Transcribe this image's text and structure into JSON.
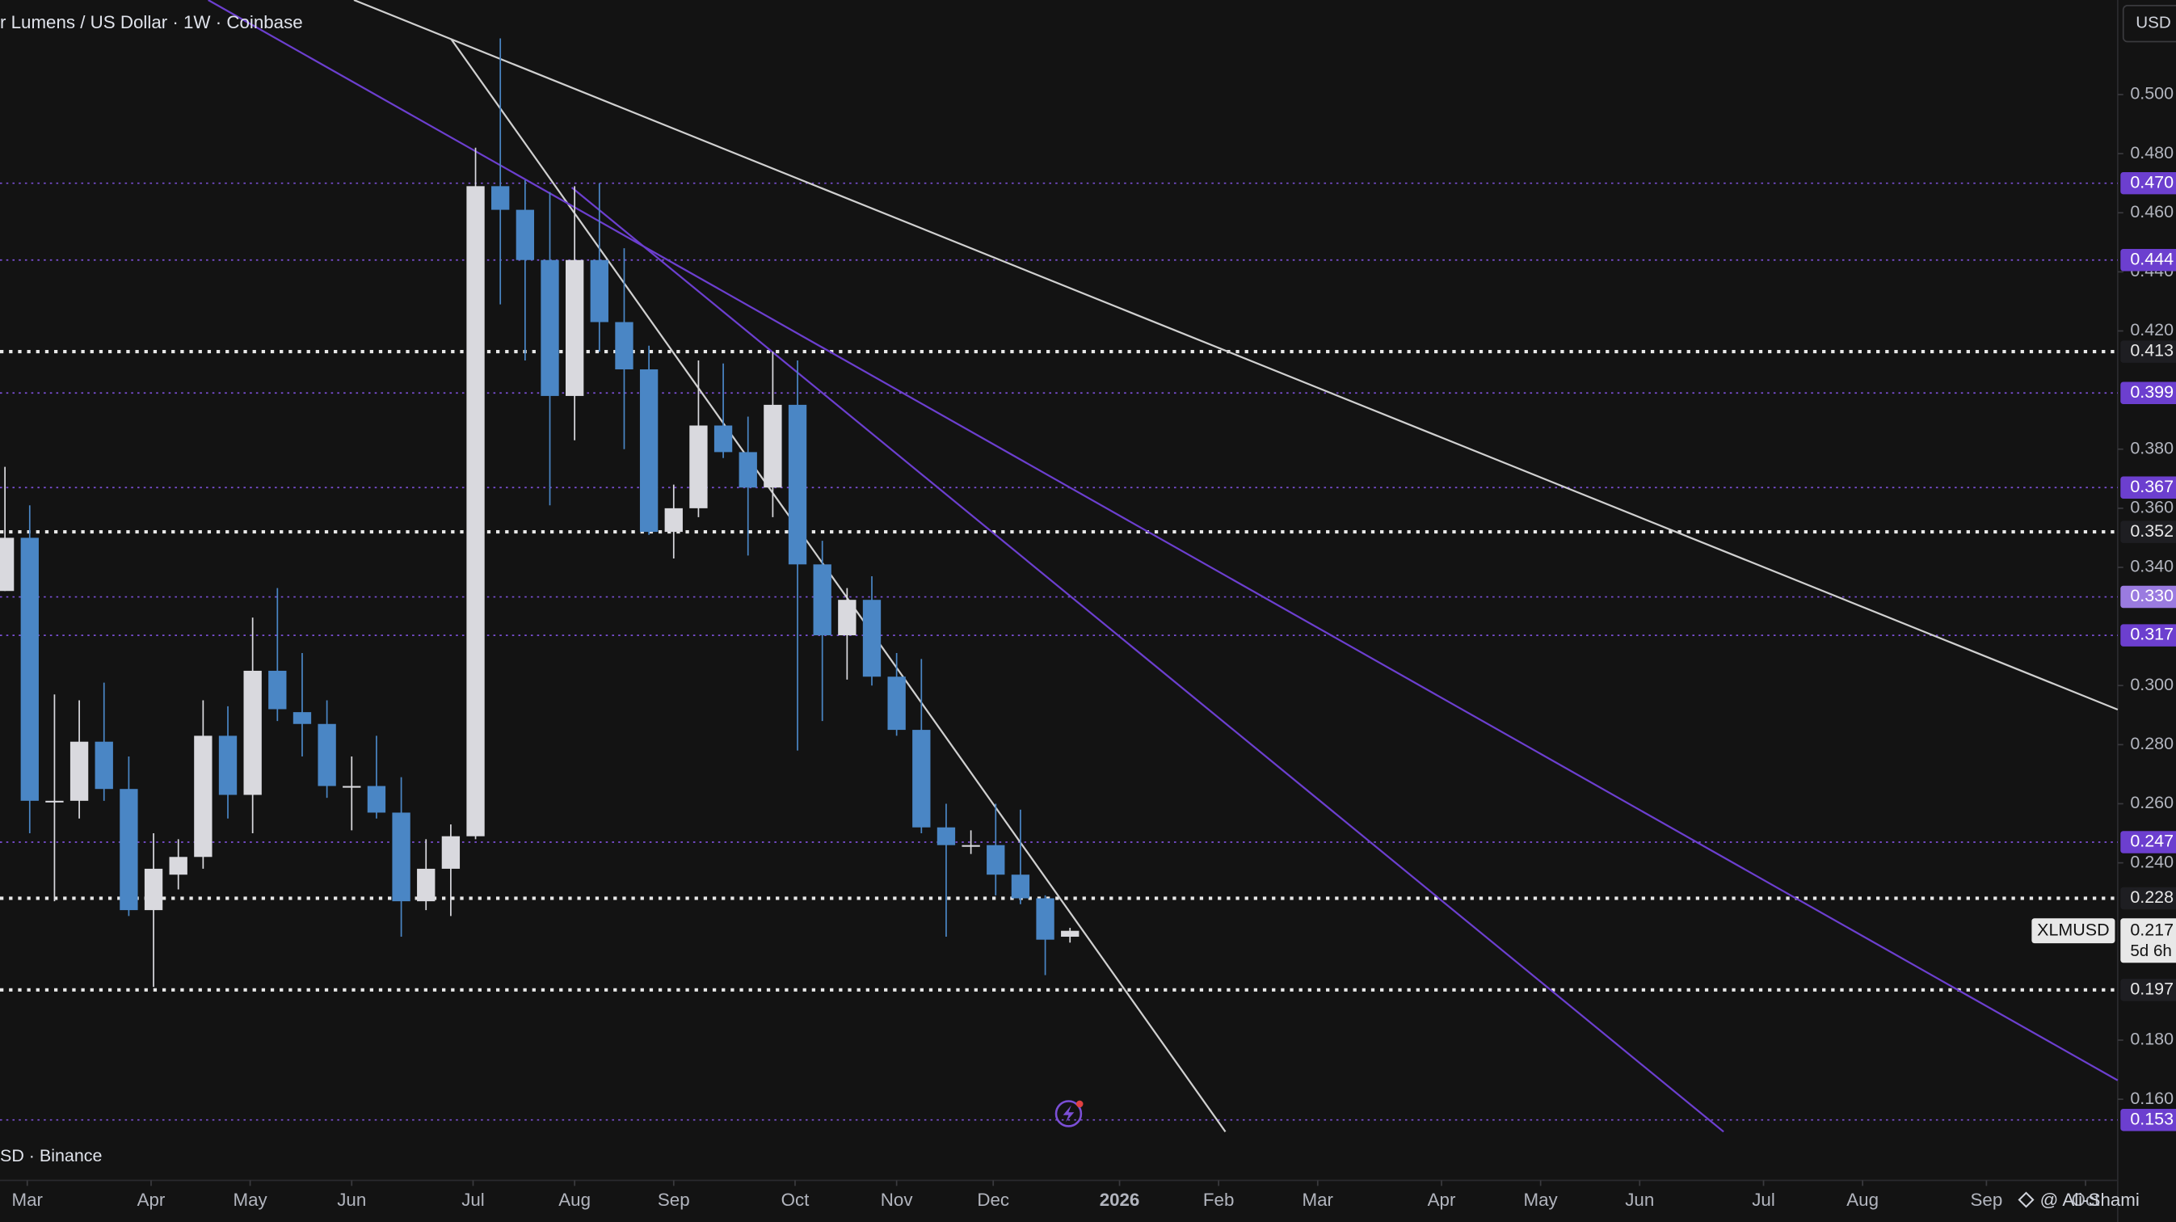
{
  "chart_data": {
    "type": "candlestick",
    "title": "r Lumens / US Dollar · 1W · Coinbase",
    "currency": "USD",
    "overlay": "SD · Binance",
    "symbol": "XLMUSD",
    "countdown": "5d 6h",
    "watermark": "@ Ali-Shami",
    "up_color": "#d9d9de",
    "down_color": "#4a86c5",
    "x": [
      0,
      1,
      2,
      3,
      4,
      5,
      6,
      7,
      8,
      9,
      10,
      11,
      12,
      13,
      14,
      15,
      16,
      17,
      18,
      19,
      20,
      21,
      22,
      23,
      24,
      25,
      26,
      27,
      28,
      29,
      30,
      31,
      32,
      33,
      34,
      35,
      36,
      37,
      38,
      39,
      40,
      41,
      42,
      43
    ],
    "open": [
      0.332,
      0.35,
      0.261,
      0.261,
      0.281,
      0.265,
      0.224,
      0.236,
      0.242,
      0.283,
      0.263,
      0.305,
      0.291,
      0.287,
      0.266,
      0.266,
      0.257,
      0.227,
      0.238,
      0.249,
      0.469,
      0.461,
      0.444,
      0.398,
      0.444,
      0.423,
      0.407,
      0.352,
      0.36,
      0.388,
      0.379,
      0.367,
      0.395,
      0.341,
      0.317,
      0.329,
      0.303,
      0.285,
      0.252,
      0.246,
      0.246,
      0.236,
      0.228,
      0.215
    ],
    "high": [
      0.374,
      0.361,
      0.297,
      0.295,
      0.301,
      0.276,
      0.25,
      0.248,
      0.295,
      0.293,
      0.323,
      0.333,
      0.311,
      0.295,
      0.276,
      0.283,
      0.269,
      0.248,
      0.253,
      0.482,
      0.519,
      0.471,
      0.467,
      0.469,
      0.47,
      0.448,
      0.415,
      0.368,
      0.41,
      0.409,
      0.391,
      0.413,
      0.41,
      0.349,
      0.333,
      0.337,
      0.311,
      0.309,
      0.26,
      0.251,
      0.26,
      0.258,
      0.229,
      0.218
    ],
    "low": [
      0.332,
      0.25,
      0.227,
      0.255,
      0.261,
      0.222,
      0.198,
      0.231,
      0.238,
      0.255,
      0.25,
      0.288,
      0.276,
      0.262,
      0.251,
      0.255,
      0.215,
      0.224,
      0.222,
      0.248,
      0.429,
      0.41,
      0.361,
      0.383,
      0.413,
      0.38,
      0.351,
      0.343,
      0.357,
      0.377,
      0.344,
      0.357,
      0.278,
      0.288,
      0.302,
      0.3,
      0.283,
      0.25,
      0.215,
      0.243,
      0.229,
      0.226,
      0.202,
      0.213
    ],
    "close": [
      0.35,
      0.261,
      0.261,
      0.281,
      0.265,
      0.224,
      0.238,
      0.242,
      0.283,
      0.263,
      0.305,
      0.292,
      0.287,
      0.266,
      0.266,
      0.257,
      0.227,
      0.238,
      0.249,
      0.469,
      0.461,
      0.444,
      0.398,
      0.444,
      0.423,
      0.407,
      0.352,
      0.36,
      0.388,
      0.379,
      0.367,
      0.395,
      0.341,
      0.317,
      0.329,
      0.303,
      0.285,
      0.252,
      0.246,
      0.246,
      0.236,
      0.228,
      0.214,
      0.217
    ],
    "xlim": [
      -0.2,
      85.3
    ],
    "ylim": [
      0.149,
      0.532
    ],
    "xticks": [
      {
        "value": 0.9,
        "label": "Mar"
      },
      {
        "value": 5.9,
        "label": "Apr"
      },
      {
        "value": 9.9,
        "label": "May"
      },
      {
        "value": 14,
        "label": "Jun"
      },
      {
        "value": 18.9,
        "label": "Jul"
      },
      {
        "value": 23,
        "label": "Aug"
      },
      {
        "value": 27,
        "label": "Sep"
      },
      {
        "value": 31.9,
        "label": "Oct"
      },
      {
        "value": 36,
        "label": "Nov"
      },
      {
        "value": 39.9,
        "label": "Dec"
      },
      {
        "value": 45,
        "label": "2026"
      },
      {
        "value": 49,
        "label": "Feb"
      },
      {
        "value": 53,
        "label": "Mar"
      },
      {
        "value": 58,
        "label": "Apr"
      },
      {
        "value": 62,
        "label": "May"
      },
      {
        "value": 66,
        "label": "Jun"
      },
      {
        "value": 71,
        "label": "Jul"
      },
      {
        "value": 75,
        "label": "Aug"
      },
      {
        "value": 80,
        "label": "Sep"
      },
      {
        "value": 84,
        "label": "Oct"
      }
    ],
    "yticks": [
      {
        "value": 0.5,
        "label": "0.500"
      },
      {
        "value": 0.48,
        "label": "0.480"
      },
      {
        "value": 0.46,
        "label": "0.460"
      },
      {
        "value": 0.44,
        "label": "0.440"
      },
      {
        "value": 0.42,
        "label": "0.420"
      },
      {
        "value": 0.38,
        "label": "0.380"
      },
      {
        "value": 0.36,
        "label": "0.360"
      },
      {
        "value": 0.34,
        "label": "0.340"
      },
      {
        "value": 0.3,
        "label": "0.300"
      },
      {
        "value": 0.28,
        "label": "0.280"
      },
      {
        "value": 0.26,
        "label": "0.260"
      },
      {
        "value": 0.24,
        "label": "0.240"
      },
      {
        "value": 0.18,
        "label": "0.180"
      },
      {
        "value": 0.16,
        "label": "0.160"
      }
    ],
    "levels": [
      {
        "value": 0.47,
        "label": "0.470",
        "style": "purple"
      },
      {
        "value": 0.444,
        "label": "0.444",
        "style": "purple"
      },
      {
        "value": 0.413,
        "label": "0.413",
        "style": "white"
      },
      {
        "value": 0.399,
        "label": "0.399",
        "style": "purple"
      },
      {
        "value": 0.367,
        "label": "0.367",
        "style": "purple"
      },
      {
        "value": 0.352,
        "label": "0.352",
        "style": "white"
      },
      {
        "value": 0.33,
        "label": "0.330",
        "style": "lilac"
      },
      {
        "value": 0.317,
        "label": "0.317",
        "style": "purple"
      },
      {
        "value": 0.247,
        "label": "0.247",
        "style": "purple"
      },
      {
        "value": 0.228,
        "label": "0.228",
        "style": "white"
      },
      {
        "value": 0.197,
        "label": "0.197",
        "style": "white"
      },
      {
        "value": 0.153,
        "label": "0.153",
        "style": "purple"
      }
    ],
    "last_price": {
      "value": 0.217,
      "label": "0.217"
    }
  }
}
